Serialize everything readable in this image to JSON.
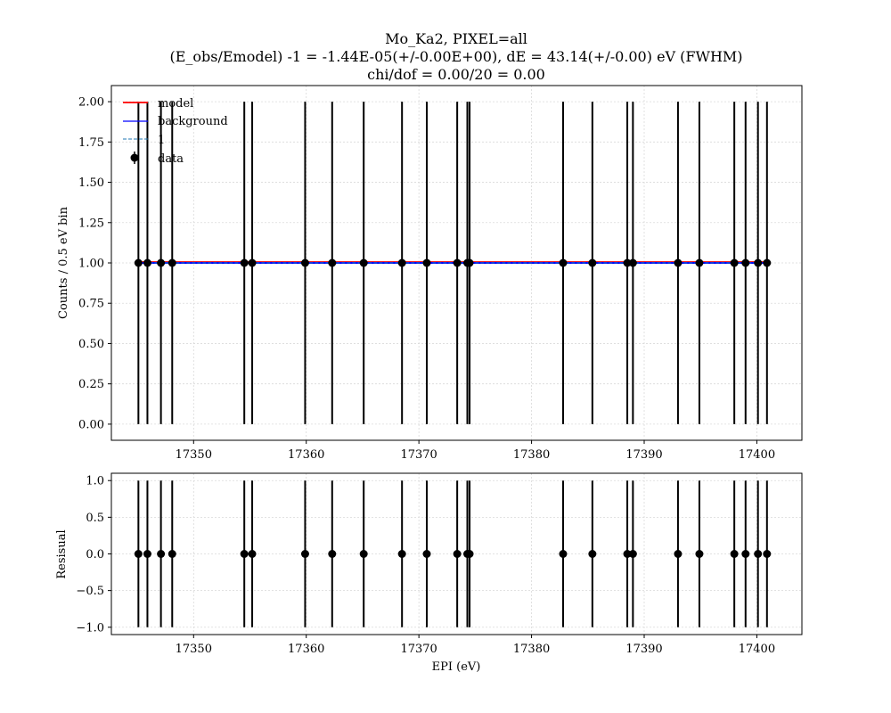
{
  "chart_data": [
    {
      "type": "scatter",
      "panel": "main",
      "title": [
        "Mo_Ka2, PIXEL=all",
        "(E_obs/Emodel) -1 = -1.44E-05(+/-0.00E+00), dE = 43.14(+/-0.00) eV (FWHM)",
        "chi/dof = 0.00/20 = 0.00"
      ],
      "xlabel": "",
      "ylabel": "Counts / 0.5 eV bin",
      "xlim": [
        17342.7,
        17404.0
      ],
      "ylim": [
        -0.1,
        2.1
      ],
      "xticks": [
        17350,
        17360,
        17370,
        17380,
        17390,
        17400
      ],
      "yticks": [
        0.0,
        0.25,
        0.5,
        0.75,
        1.0,
        1.25,
        1.5,
        1.75,
        2.0
      ],
      "ytick_labels": [
        "0.00",
        "0.25",
        "0.50",
        "0.75",
        "1.00",
        "1.25",
        "1.50",
        "1.75",
        "2.00"
      ],
      "grid": true,
      "legend_position": "top-left",
      "legend": [
        {
          "label": "model",
          "kind": "line",
          "color": "#ff0000",
          "style": "solid"
        },
        {
          "label": "background",
          "kind": "line",
          "color": "#0000ff",
          "style": "solid"
        },
        {
          "label": "1",
          "kind": "line",
          "color": "#1f77b4",
          "style": "dashed"
        },
        {
          "label": "data",
          "kind": "errorbar",
          "color": "#000000"
        }
      ],
      "lines": [
        {
          "name": "model",
          "color": "#ff0000",
          "x": [
            17345.1,
            17400.9
          ],
          "y": [
            1.005,
            1.005
          ]
        },
        {
          "name": "background",
          "color": "#0000ff",
          "x": [
            17345.1,
            17400.9
          ],
          "y": [
            1.0,
            1.0
          ]
        },
        {
          "name": "1",
          "color": "#1f77b4",
          "dashed": true,
          "x": [
            17345.1,
            17400.9
          ],
          "y": [
            1.0,
            1.0
          ]
        }
      ],
      "series": [
        {
          "name": "data",
          "color": "#000000",
          "x": [
            17345.1,
            17345.9,
            17347.1,
            17348.1,
            17354.5,
            17355.2,
            17359.9,
            17362.3,
            17365.1,
            17368.5,
            17370.7,
            17373.4,
            17374.3,
            17374.5,
            17382.8,
            17385.4,
            17388.5,
            17389.0,
            17393.0,
            17394.9,
            17398.0,
            17399.0,
            17400.1,
            17400.9
          ],
          "y": [
            1,
            1,
            1,
            1,
            1,
            1,
            1,
            1,
            1,
            1,
            1,
            1,
            1,
            1,
            1,
            1,
            1,
            1,
            1,
            1,
            1,
            1,
            1,
            1
          ],
          "yerr": [
            1,
            1,
            1,
            1,
            1,
            1,
            1,
            1,
            1,
            1,
            1,
            1,
            1,
            1,
            1,
            1,
            1,
            1,
            1,
            1,
            1,
            1,
            1,
            1
          ]
        }
      ]
    },
    {
      "type": "scatter",
      "panel": "residual",
      "title": "",
      "xlabel": "EPI (eV)",
      "ylabel": "Resisual",
      "xlim": [
        17342.7,
        17404.0
      ],
      "ylim": [
        -1.1,
        1.1
      ],
      "xticks": [
        17350,
        17360,
        17370,
        17380,
        17390,
        17400
      ],
      "yticks": [
        -1.0,
        -0.5,
        0.0,
        0.5,
        1.0
      ],
      "ytick_labels": [
        "−1.0",
        "−0.5",
        "0.0",
        "0.5",
        "1.0"
      ],
      "grid": true,
      "series": [
        {
          "name": "residual",
          "color": "#000000",
          "x": [
            17345.1,
            17345.9,
            17347.1,
            17348.1,
            17354.5,
            17355.2,
            17359.9,
            17362.3,
            17365.1,
            17368.5,
            17370.7,
            17373.4,
            17374.3,
            17374.5,
            17382.8,
            17385.4,
            17388.5,
            17389.0,
            17393.0,
            17394.9,
            17398.0,
            17399.0,
            17400.1,
            17400.9
          ],
          "y": [
            0,
            0,
            0,
            0,
            0,
            0,
            0,
            0,
            0,
            0,
            0,
            0,
            0,
            0,
            0,
            0,
            0,
            0,
            0,
            0,
            0,
            0,
            0,
            0
          ],
          "yerr": [
            1,
            1,
            1,
            1,
            1,
            1,
            1,
            1,
            1,
            1,
            1,
            1,
            1,
            1,
            1,
            1,
            1,
            1,
            1,
            1,
            1,
            1,
            1,
            1
          ]
        }
      ]
    }
  ]
}
